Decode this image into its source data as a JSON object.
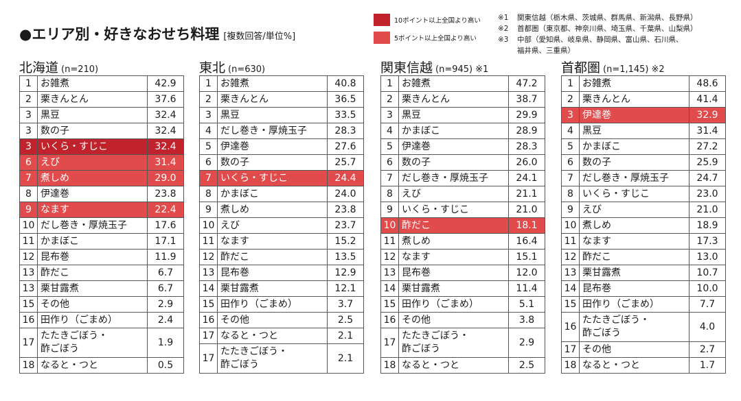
{
  "title": {
    "main": "●エリア別・好きなおせち料理",
    "sub": "[複数回答/単位%]"
  },
  "legend": [
    {
      "label": "10ポイント以上全国より高い",
      "color": "#c0232c",
      "level": "r10"
    },
    {
      "label": "5ポイント以上全国より高い",
      "color": "#e24b4b",
      "level": "r5"
    }
  ],
  "notes": [
    {
      "key": "※1",
      "lines": [
        "関東信越（栃木県、茨城県、群馬県、新潟県、長野県）"
      ]
    },
    {
      "key": "※2",
      "lines": [
        "首都圏（東京都、神奈川県、埼玉県、千葉県、山梨県）"
      ]
    },
    {
      "key": "※3",
      "lines": [
        "中部（愛知県、岐阜県、静岡県、富山県、石川県、",
        "福井県、三重県）"
      ]
    }
  ],
  "regions": [
    {
      "name": "北海道",
      "n": "(n=210)",
      "mark": "",
      "rows": [
        {
          "rank": "1",
          "item": "お雑煮",
          "value": "42.9",
          "hl": ""
        },
        {
          "rank": "2",
          "item": "栗きんとん",
          "value": "37.6",
          "hl": ""
        },
        {
          "rank": "3",
          "item": "黒豆",
          "value": "32.4",
          "hl": ""
        },
        {
          "rank": "3",
          "item": "数の子",
          "value": "32.4",
          "hl": ""
        },
        {
          "rank": "3",
          "item": "いくら・すじこ",
          "value": "32.4",
          "hl": "r10"
        },
        {
          "rank": "6",
          "item": "えび",
          "value": "31.4",
          "hl": "r5"
        },
        {
          "rank": "7",
          "item": "煮しめ",
          "value": "29.0",
          "hl": "r5"
        },
        {
          "rank": "8",
          "item": "伊達巻",
          "value": "23.8",
          "hl": ""
        },
        {
          "rank": "9",
          "item": "なます",
          "value": "22.4",
          "hl": "r5"
        },
        {
          "rank": "10",
          "item": "だし巻き・厚焼玉子",
          "value": "17.6",
          "hl": ""
        },
        {
          "rank": "11",
          "item": "かまぼこ",
          "value": "17.1",
          "hl": ""
        },
        {
          "rank": "12",
          "item": "昆布巻",
          "value": "11.9",
          "hl": ""
        },
        {
          "rank": "13",
          "item": "酢だこ",
          "value": "6.7",
          "hl": ""
        },
        {
          "rank": "13",
          "item": "栗甘露煮",
          "value": "6.7",
          "hl": ""
        },
        {
          "rank": "15",
          "item": "その他",
          "value": "2.9",
          "hl": ""
        },
        {
          "rank": "16",
          "item": "田作り（ごまめ）",
          "value": "2.4",
          "hl": ""
        },
        {
          "rank": "17",
          "item": "たたきごぼう・\n酢ごぼう",
          "value": "1.9",
          "hl": ""
        },
        {
          "rank": "18",
          "item": "なると・つと",
          "value": "0.5",
          "hl": ""
        }
      ]
    },
    {
      "name": "東北",
      "n": "(n=630)",
      "mark": "",
      "rows": [
        {
          "rank": "1",
          "item": "お雑煮",
          "value": "40.8",
          "hl": ""
        },
        {
          "rank": "2",
          "item": "栗きんとん",
          "value": "36.5",
          "hl": ""
        },
        {
          "rank": "3",
          "item": "黒豆",
          "value": "33.5",
          "hl": ""
        },
        {
          "rank": "4",
          "item": "だし巻き・厚焼玉子",
          "value": "28.3",
          "hl": ""
        },
        {
          "rank": "5",
          "item": "伊達巻",
          "value": "27.6",
          "hl": ""
        },
        {
          "rank": "6",
          "item": "数の子",
          "value": "25.7",
          "hl": ""
        },
        {
          "rank": "7",
          "item": "いくら・すじこ",
          "value": "24.4",
          "hl": "r5"
        },
        {
          "rank": "8",
          "item": "かまぼこ",
          "value": "24.0",
          "hl": ""
        },
        {
          "rank": "9",
          "item": "煮しめ",
          "value": "23.8",
          "hl": ""
        },
        {
          "rank": "10",
          "item": "えび",
          "value": "23.7",
          "hl": ""
        },
        {
          "rank": "11",
          "item": "なます",
          "value": "15.2",
          "hl": ""
        },
        {
          "rank": "12",
          "item": "酢だこ",
          "value": "13.5",
          "hl": ""
        },
        {
          "rank": "13",
          "item": "昆布巻",
          "value": "12.9",
          "hl": ""
        },
        {
          "rank": "14",
          "item": "栗甘露煮",
          "value": "12.1",
          "hl": ""
        },
        {
          "rank": "15",
          "item": "田作り（ごまめ）",
          "value": "3.7",
          "hl": ""
        },
        {
          "rank": "16",
          "item": "その他",
          "value": "2.5",
          "hl": ""
        },
        {
          "rank": "17",
          "item": "なると・つと",
          "value": "2.1",
          "hl": ""
        },
        {
          "rank": "17",
          "item": "たたきごぼう・\n酢ごぼう",
          "value": "2.1",
          "hl": ""
        }
      ]
    },
    {
      "name": "関東信越",
      "n": "(n=945)",
      "mark": "※1",
      "rows": [
        {
          "rank": "1",
          "item": "お雑煮",
          "value": "47.2",
          "hl": ""
        },
        {
          "rank": "2",
          "item": "栗きんとん",
          "value": "38.7",
          "hl": ""
        },
        {
          "rank": "3",
          "item": "黒豆",
          "value": "29.9",
          "hl": ""
        },
        {
          "rank": "4",
          "item": "かまぼこ",
          "value": "28.9",
          "hl": ""
        },
        {
          "rank": "5",
          "item": "伊達巻",
          "value": "28.3",
          "hl": ""
        },
        {
          "rank": "6",
          "item": "数の子",
          "value": "26.0",
          "hl": ""
        },
        {
          "rank": "7",
          "item": "だし巻き・厚焼玉子",
          "value": "24.1",
          "hl": ""
        },
        {
          "rank": "8",
          "item": "えび",
          "value": "21.1",
          "hl": ""
        },
        {
          "rank": "9",
          "item": "いくら・すじこ",
          "value": "21.0",
          "hl": ""
        },
        {
          "rank": "10",
          "item": "酢だこ",
          "value": "18.1",
          "hl": "r5"
        },
        {
          "rank": "11",
          "item": "煮しめ",
          "value": "16.4",
          "hl": ""
        },
        {
          "rank": "12",
          "item": "なます",
          "value": "15.1",
          "hl": ""
        },
        {
          "rank": "13",
          "item": "昆布巻",
          "value": "12.0",
          "hl": ""
        },
        {
          "rank": "14",
          "item": "栗甘露煮",
          "value": "11.4",
          "hl": ""
        },
        {
          "rank": "15",
          "item": "田作り（ごまめ）",
          "value": "5.1",
          "hl": ""
        },
        {
          "rank": "16",
          "item": "その他",
          "value": "3.8",
          "hl": ""
        },
        {
          "rank": "17",
          "item": "たたきごぼう・\n酢ごぼう",
          "value": "2.9",
          "hl": ""
        },
        {
          "rank": "18",
          "item": "なると・つと",
          "value": "2.5",
          "hl": ""
        }
      ]
    },
    {
      "name": "首都圏",
      "n": "(n=1,145)",
      "mark": "※2",
      "rows": [
        {
          "rank": "1",
          "item": "お雑煮",
          "value": "48.6",
          "hl": ""
        },
        {
          "rank": "2",
          "item": "栗きんとん",
          "value": "41.4",
          "hl": ""
        },
        {
          "rank": "3",
          "item": "伊達巻",
          "value": "32.9",
          "hl": "r5"
        },
        {
          "rank": "4",
          "item": "黒豆",
          "value": "31.4",
          "hl": ""
        },
        {
          "rank": "5",
          "item": "かまぼこ",
          "value": "27.2",
          "hl": ""
        },
        {
          "rank": "6",
          "item": "数の子",
          "value": "25.9",
          "hl": ""
        },
        {
          "rank": "7",
          "item": "だし巻き・厚焼玉子",
          "value": "24.7",
          "hl": ""
        },
        {
          "rank": "8",
          "item": "いくら・すじこ",
          "value": "23.0",
          "hl": ""
        },
        {
          "rank": "9",
          "item": "えび",
          "value": "21.0",
          "hl": ""
        },
        {
          "rank": "10",
          "item": "煮しめ",
          "value": "18.9",
          "hl": ""
        },
        {
          "rank": "11",
          "item": "なます",
          "value": "17.3",
          "hl": ""
        },
        {
          "rank": "12",
          "item": "酢だこ",
          "value": "13.0",
          "hl": ""
        },
        {
          "rank": "13",
          "item": "栗甘露煮",
          "value": "10.7",
          "hl": ""
        },
        {
          "rank": "14",
          "item": "昆布巻",
          "value": "10.0",
          "hl": ""
        },
        {
          "rank": "15",
          "item": "田作り（ごまめ）",
          "value": "7.7",
          "hl": ""
        },
        {
          "rank": "16",
          "item": "たたきごぼう・\n酢ごぼう",
          "value": "4.0",
          "hl": ""
        },
        {
          "rank": "17",
          "item": "その他",
          "value": "2.7",
          "hl": ""
        },
        {
          "rank": "18",
          "item": "なると・つと",
          "value": "1.7",
          "hl": ""
        }
      ]
    }
  ]
}
